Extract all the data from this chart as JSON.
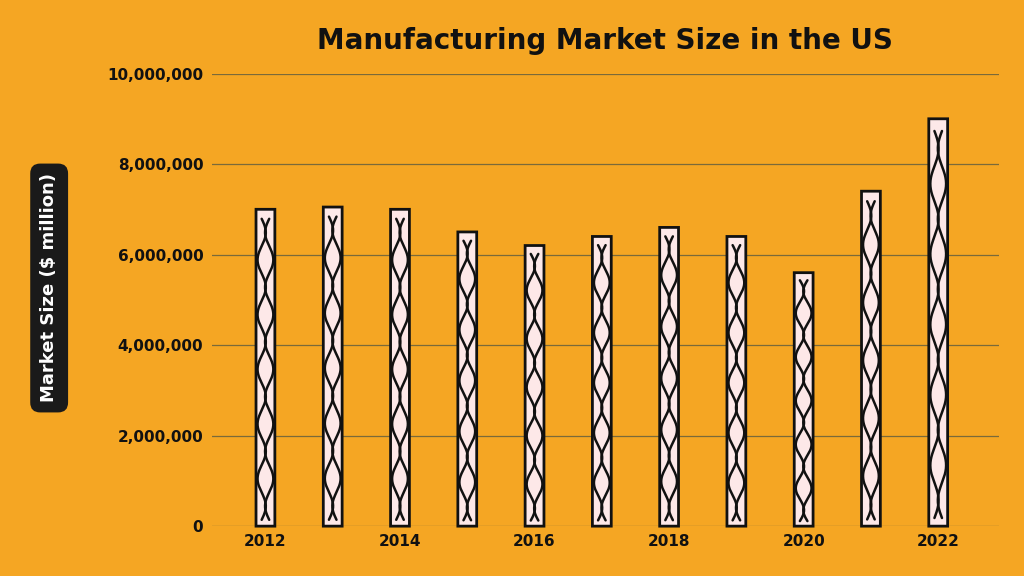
{
  "title": "Manufacturing Market Size in the US",
  "ylabel": "Market Size ($ million)",
  "background_color": "#F5A623",
  "bar_fill_color": "#FDE8E8",
  "bar_edge_color": "#111111",
  "title_color": "#111111",
  "ylabel_color": "#FFFFFF",
  "ylabel_bg_color": "#1a1a1a",
  "years": [
    2012,
    2013,
    2014,
    2015,
    2016,
    2017,
    2018,
    2019,
    2020,
    2021,
    2022
  ],
  "values": [
    7000000,
    7050000,
    7000000,
    6500000,
    6200000,
    6400000,
    6600000,
    6400000,
    5600000,
    7400000,
    9000000
  ],
  "ylim": [
    0,
    10000000
  ],
  "yticks": [
    0,
    2000000,
    4000000,
    6000000,
    8000000,
    10000000
  ],
  "ytick_labels": [
    "0",
    "2,000,000",
    "4,000,000",
    "6,000,000",
    "8,000,000",
    "10,000,000"
  ],
  "grid_color": "#7a6a3a",
  "tick_color": "#111111",
  "title_fontsize": 20,
  "label_fontsize": 13,
  "tick_fontsize": 11
}
